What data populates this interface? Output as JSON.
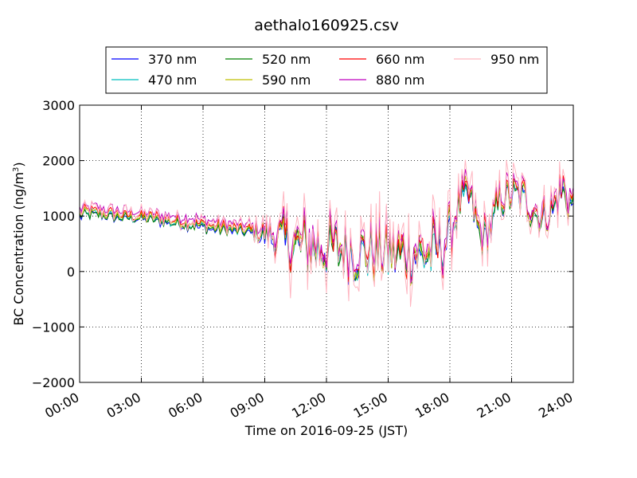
{
  "chart_data": {
    "type": "line",
    "title": "aethalo160925.csv",
    "xlabel": "Time on 2016-09-25 (JST)",
    "ylabel_main": "BC Concentration (ng/m",
    "ylabel_sup": "3",
    "ylabel_close": ")",
    "xlim": [
      0,
      24
    ],
    "ylim": [
      -2000,
      3000
    ],
    "x_tick_values": [
      0,
      3,
      6,
      9,
      12,
      15,
      18,
      21,
      24
    ],
    "x_tick_labels": [
      "00:00",
      "03:00",
      "06:00",
      "09:00",
      "12:00",
      "15:00",
      "18:00",
      "21:00",
      "24:00"
    ],
    "y_tick_values": [
      -2000,
      -1000,
      0,
      1000,
      2000,
      3000
    ],
    "y_tick_labels": [
      "−2000",
      "−1000",
      "0",
      "1000",
      "2000",
      "3000"
    ],
    "grid": true,
    "legend_position": "top",
    "x_unit": "hours",
    "series": [
      {
        "name": "370 nm",
        "color": "#0000ff"
      },
      {
        "name": "470 nm",
        "color": "#00bfbf"
      },
      {
        "name": "520 nm",
        "color": "#008000"
      },
      {
        "name": "590 nm",
        "color": "#bfbf00"
      },
      {
        "name": "660 nm",
        "color": "#ff0000"
      },
      {
        "name": "880 nm",
        "color": "#bf00bf"
      },
      {
        "name": "950 nm",
        "color": "#ffb6c1"
      }
    ],
    "profile": {
      "x": [
        0,
        0.5,
        1,
        1.5,
        2,
        2.5,
        3,
        3.5,
        4,
        4.5,
        5,
        5.5,
        6,
        6.5,
        7,
        7.5,
        8,
        8.5,
        9,
        9.5,
        10,
        10.5,
        11,
        11.5,
        12,
        12.5,
        13,
        13.5,
        14,
        14.5,
        15,
        15.5,
        16,
        16.5,
        17,
        17.5,
        18,
        18.5,
        19,
        19.5,
        20,
        20.5,
        21,
        21.5,
        22,
        22.5,
        23,
        23.5,
        24
      ],
      "base": [
        1050,
        1080,
        1060,
        1040,
        1020,
        1000,
        990,
        980,
        950,
        920,
        900,
        880,
        850,
        820,
        800,
        780,
        760,
        740,
        700,
        650,
        550,
        500,
        480,
        450,
        430,
        420,
        410,
        400,
        390,
        380,
        370,
        360,
        350,
        360,
        380,
        400,
        700,
        1300,
        1350,
        600,
        800,
        1350,
        1400,
        1350,
        1200,
        1000,
        1150,
        1500,
        1200
      ],
      "noise": [
        100,
        100,
        100,
        100,
        100,
        100,
        100,
        100,
        100,
        100,
        100,
        100,
        100,
        100,
        100,
        100,
        100,
        150,
        250,
        350,
        500,
        550,
        550,
        550,
        550,
        550,
        550,
        550,
        550,
        550,
        550,
        550,
        550,
        550,
        550,
        550,
        500,
        350,
        350,
        350,
        350,
        350,
        350,
        350,
        350,
        350,
        350,
        450,
        300
      ]
    }
  }
}
